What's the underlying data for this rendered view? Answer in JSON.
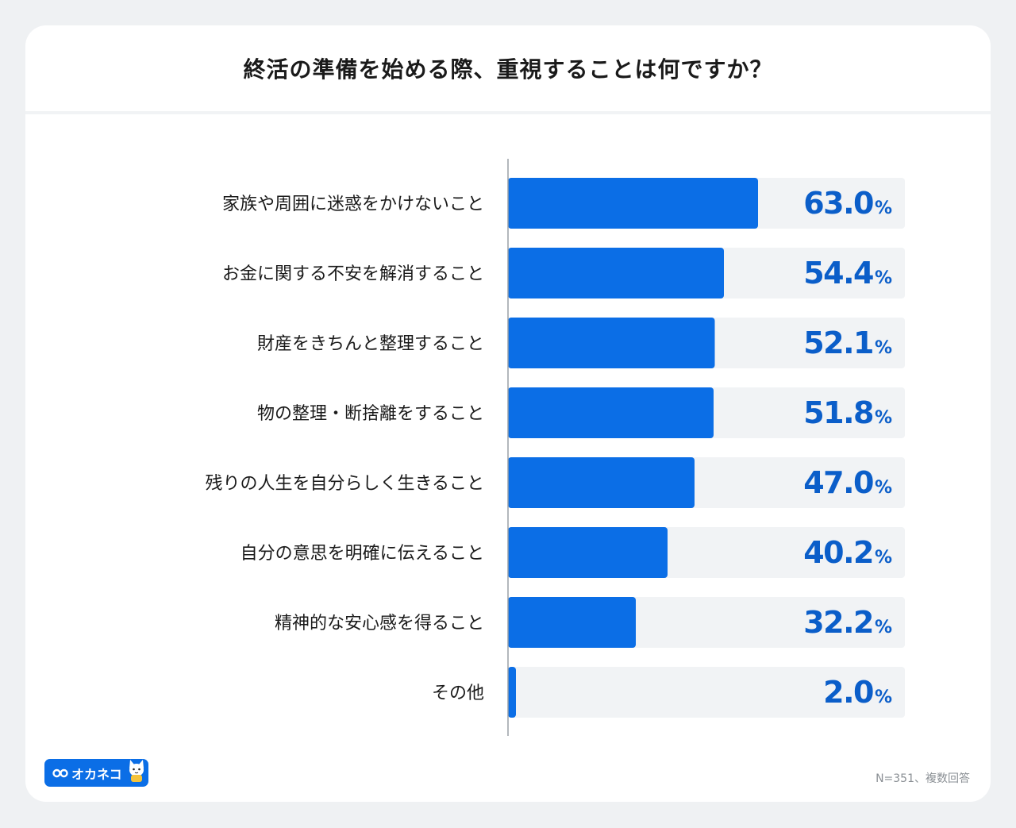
{
  "title": "終活の準備を始める際、重視することは何ですか？",
  "footnote": "N=351、複数回答",
  "brand": {
    "name": "オカネコ",
    "icon": "infinity-glasses-icon",
    "mascot": "cat-mascot-icon"
  },
  "colors": {
    "bar": "#0b6ee6",
    "track": "#f1f3f5",
    "value_text": "#0b5ec9",
    "label_text": "#1a1a1a",
    "background": "#eff1f3",
    "axis": "#9aa0a6"
  },
  "chart_data": {
    "type": "bar",
    "orientation": "horizontal",
    "categories": [
      "家族や周囲に迷惑をかけないこと",
      "お金に関する不安を解消すること",
      "財産をきちんと整理すること",
      "物の整理・断捨離をすること",
      "残りの人生を自分らしく生きること",
      "自分の意思を明確に伝えること",
      "精神的な安心感を得ること",
      "その他"
    ],
    "values": [
      63.0,
      54.4,
      52.1,
      51.8,
      47.0,
      40.2,
      32.2,
      2.0
    ],
    "value_labels": [
      "63.0",
      "54.4",
      "52.1",
      "51.8",
      "47.0",
      "40.2",
      "32.2",
      "2.0"
    ],
    "unit": "%",
    "xlim": [
      0,
      100
    ],
    "grid": false
  }
}
